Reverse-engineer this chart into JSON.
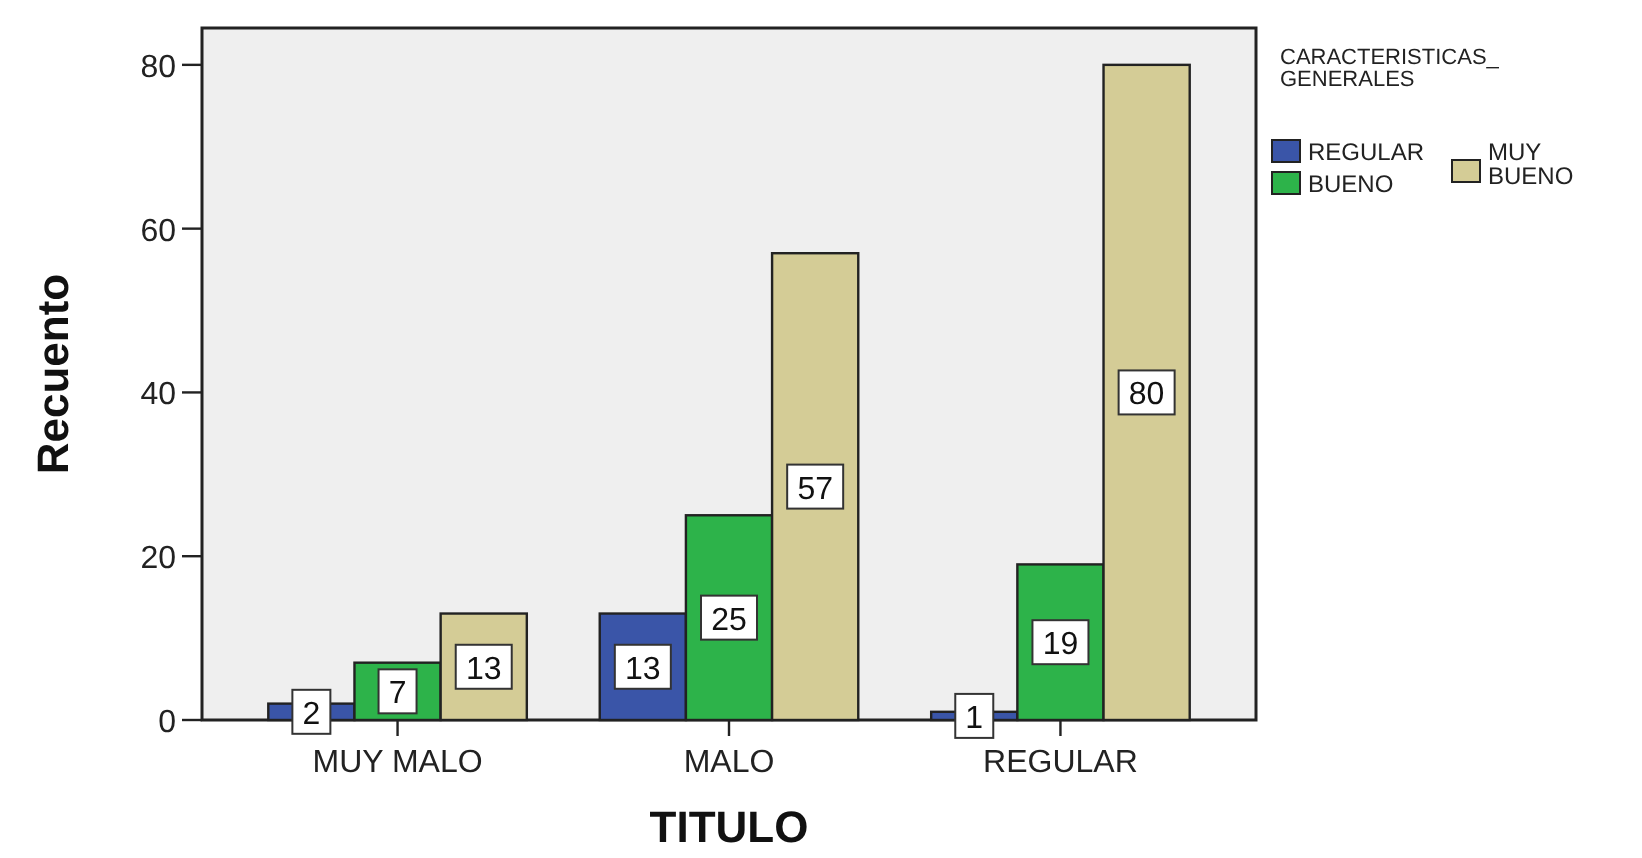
{
  "chart_data": {
    "type": "bar",
    "xlabel": "TITULO",
    "ylabel": "Recuento",
    "legend_title": "CARACTERISTICAS_GENERALES",
    "categories": [
      "MUY MALO",
      "MALO",
      "REGULAR"
    ],
    "series": [
      {
        "name": "REGULAR",
        "color": "#3a55a8",
        "values": [
          2,
          13,
          1
        ]
      },
      {
        "name": "BUENO",
        "color": "#2db34a",
        "values": [
          7,
          25,
          19
        ]
      },
      {
        "name": "MUY BUENO",
        "color": "#d4cc96",
        "values": [
          13,
          57,
          80
        ]
      }
    ],
    "ylim": [
      0,
      84.5
    ],
    "yticks": [
      0,
      20,
      40,
      60,
      80
    ],
    "grid": false,
    "legend": "right",
    "data_labels": true
  }
}
